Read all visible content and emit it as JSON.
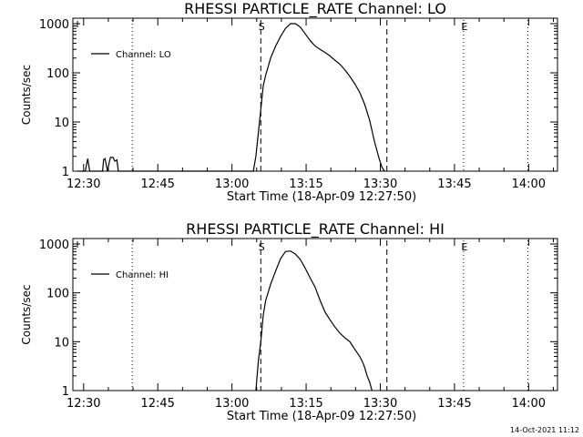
{
  "chart_data": [
    {
      "type": "line",
      "title": "RHESSI PARTICLE_RATE Channel: LO",
      "xlabel": "Start Time (18-Apr-09 12:27:50)",
      "ylabel": "Counts/sec",
      "y_scale": "log",
      "ylim": [
        1,
        1000
      ],
      "y_ticks": [
        "1",
        "10",
        "100",
        "1000"
      ],
      "x_ticks": [
        "12:30",
        "12:45",
        "13:00",
        "13:15",
        "13:30",
        "13:45",
        "14:00"
      ],
      "xlim_minutes_after_start": [
        0,
        98
      ],
      "legend": "top-left",
      "grid": false,
      "markers": [
        {
          "label": "S",
          "minutes": 38,
          "style": "dashed"
        },
        {
          "label": "",
          "minutes": 63.5,
          "style": "dashed"
        },
        {
          "label": "",
          "minutes": 12,
          "style": "dotted"
        },
        {
          "label": "E",
          "minutes": 79,
          "style": "dotted"
        },
        {
          "label": "",
          "minutes": 92,
          "style": "dotted"
        }
      ],
      "series": [
        {
          "name": "Channel: LO",
          "minutes": [
            1,
            2.5,
            3,
            3.4,
            4,
            6,
            6.2,
            6.5,
            7,
            7.4,
            7.6,
            8.1,
            8.5,
            8.9,
            9.2,
            36.5,
            37,
            37.5,
            38,
            38.5,
            39,
            40,
            41,
            42,
            43,
            44,
            45,
            46,
            47,
            48,
            49,
            50,
            51,
            52,
            53,
            54,
            55,
            56,
            57,
            58,
            59,
            60,
            61,
            62,
            62.5,
            63
          ],
          "values": [
            1,
            1,
            1.8,
            1,
            1,
            1,
            1.7,
            1.8,
            1,
            1.6,
            1.9,
            1.9,
            1.6,
            1.7,
            1,
            1,
            2,
            6,
            18,
            55,
            90,
            200,
            350,
            550,
            800,
            1000,
            1000,
            850,
            620,
            450,
            350,
            300,
            260,
            220,
            180,
            150,
            115,
            85,
            60,
            40,
            23,
            11,
            4,
            1.7,
            1.2,
            1
          ]
        }
      ]
    },
    {
      "type": "line",
      "title": "RHESSI PARTICLE_RATE Channel: HI",
      "xlabel": "Start Time (18-Apr-09 12:27:50)",
      "ylabel": "Counts/sec",
      "y_scale": "log",
      "ylim": [
        1,
        1000
      ],
      "y_ticks": [
        "1",
        "10",
        "100",
        "1000"
      ],
      "x_ticks": [
        "12:30",
        "12:45",
        "13:00",
        "13:15",
        "13:30",
        "13:45",
        "14:00"
      ],
      "xlim_minutes_after_start": [
        0,
        98
      ],
      "legend": "top-left",
      "grid": false,
      "markers": [
        {
          "label": "S",
          "minutes": 38,
          "style": "dashed"
        },
        {
          "label": "",
          "minutes": 63.5,
          "style": "dashed"
        },
        {
          "label": "",
          "minutes": 12,
          "style": "dotted"
        },
        {
          "label": "E",
          "minutes": 79,
          "style": "dotted"
        },
        {
          "label": "",
          "minutes": 92,
          "style": "dotted"
        }
      ],
      "series": [
        {
          "name": "Channel: HI",
          "minutes": [
            37,
            37.5,
            38,
            38.5,
            39,
            40,
            41,
            42,
            43,
            44,
            45,
            46,
            47,
            48,
            49,
            50,
            51,
            52,
            53,
            54,
            55,
            56,
            57,
            58,
            58.5,
            59,
            59.5,
            60,
            60.5
          ],
          "values": [
            1,
            4,
            10,
            35,
            70,
            150,
            280,
            500,
            700,
            720,
            620,
            480,
            320,
            200,
            130,
            70,
            40,
            28,
            20,
            15,
            12,
            10,
            7,
            5,
            4,
            3,
            2,
            1.5,
            1
          ]
        }
      ]
    }
  ],
  "timestamp": "14-Oct-2021 11:12"
}
